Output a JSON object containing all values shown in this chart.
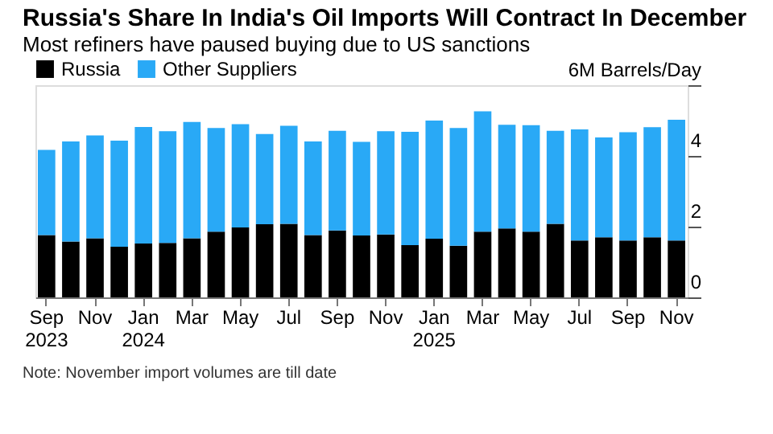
{
  "chart_data": {
    "type": "bar",
    "stacked": true,
    "title": "Russia's Share In India's Oil Imports Will Contract In December",
    "subtitle": "Most refiners have paused buying due to US sanctions",
    "categories": [
      "Sep 2023",
      null,
      "Nov",
      null,
      "Jan 2024",
      null,
      "Mar",
      null,
      "May",
      null,
      "Jul",
      null,
      "Sep",
      null,
      "Nov",
      null,
      "Jan 2025",
      null,
      "Mar",
      null,
      "May",
      null,
      "Jul",
      null,
      "Sep",
      null,
      "Nov"
    ],
    "series": [
      {
        "name": "Russia",
        "color": "#000000",
        "values": [
          1.76,
          1.58,
          1.67,
          1.43,
          1.52,
          1.54,
          1.67,
          1.86,
          1.98,
          2.07,
          2.08,
          1.76,
          1.89,
          1.75,
          1.78,
          1.48,
          1.66,
          1.46,
          1.86,
          1.95,
          1.86,
          2.08,
          1.61,
          1.7,
          1.61,
          1.7,
          1.61
        ]
      },
      {
        "name": "Other Suppliers",
        "color": "#29a9f6",
        "values": [
          2.41,
          2.83,
          2.91,
          3.0,
          3.3,
          3.16,
          3.29,
          2.93,
          2.92,
          2.55,
          2.77,
          2.65,
          2.82,
          2.65,
          2.92,
          3.2,
          3.34,
          3.33,
          3.4,
          2.93,
          3.01,
          2.63,
          3.14,
          2.82,
          3.06,
          3.11,
          3.41
        ]
      }
    ],
    "ylim": [
      0,
      6
    ],
    "yticks": [
      0,
      2,
      4,
      {
        "value": 6,
        "label": "6M Barrels/Day"
      }
    ],
    "grid": false,
    "legend": "top left",
    "annotations": [
      "Note: November import volumes are till date"
    ]
  }
}
